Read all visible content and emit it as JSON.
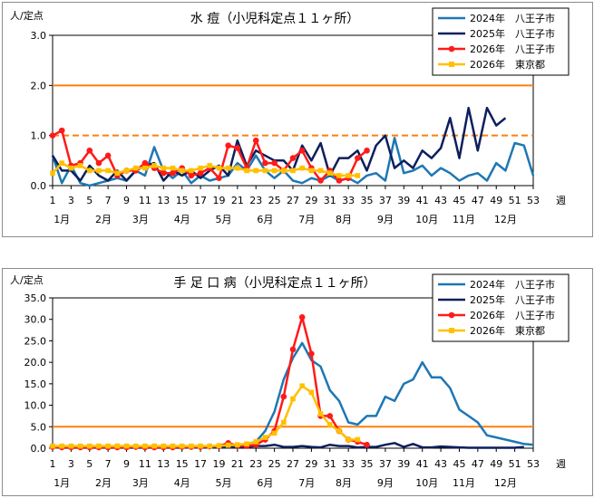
{
  "colors": {
    "s2024": "#1f77b4",
    "s2025": "#0d1f5c",
    "s2026_hachioji": "#ff1a1a",
    "s2026_tokyo": "#ffc000",
    "threshold": "#ff7f0e"
  },
  "chart_data": [
    {
      "type": "line",
      "title": "水 痘（小児科定点１１ヶ所）",
      "ylabel": "人/定点",
      "xlabel": "週",
      "ylim": [
        0,
        3.0
      ],
      "yticks": [
        "0.0",
        "1.0",
        "2.0",
        "3.0"
      ],
      "xtick_labels": [
        "1",
        "3",
        "5",
        "7",
        "9",
        "11",
        "13",
        "15",
        "17",
        "19",
        "21",
        "23",
        "25",
        "27",
        "29",
        "31",
        "33",
        "35",
        "37",
        "39",
        "41",
        "43",
        "45",
        "47",
        "49",
        "51",
        "53"
      ],
      "month_labels": [
        {
          "label": "1月",
          "week": 2
        },
        {
          "label": "2月",
          "week": 6.5
        },
        {
          "label": "3月",
          "week": 10.5
        },
        {
          "label": "4月",
          "week": 15
        },
        {
          "label": "5月",
          "week": 19.5
        },
        {
          "label": "6月",
          "week": 24
        },
        {
          "label": "7月",
          "week": 28.5
        },
        {
          "label": "8月",
          "week": 32.5
        },
        {
          "label": "9月",
          "week": 37
        },
        {
          "label": "10月",
          "week": 41.5
        },
        {
          "label": "11月",
          "week": 45.5
        },
        {
          "label": "12月",
          "week": 50
        }
      ],
      "thresholds": [
        {
          "name": "alarm",
          "value": 2.0,
          "style": "solid"
        },
        {
          "name": "warning",
          "value": 1.0,
          "style": "dashed"
        }
      ],
      "series": [
        {
          "name": "2024年　八王子市",
          "color_key": "s2024",
          "marker": "none",
          "values": [
            0.6,
            0.05,
            0.4,
            0.05,
            0.0,
            0.05,
            0.1,
            0.15,
            0.1,
            0.3,
            0.2,
            0.77,
            0.3,
            0.15,
            0.3,
            0.05,
            0.2,
            0.1,
            0.15,
            0.2,
            0.45,
            0.3,
            0.6,
            0.3,
            0.15,
            0.3,
            0.1,
            0.05,
            0.15,
            0.1,
            0.2,
            0.1,
            0.15,
            0.05,
            0.2,
            0.25,
            0.1,
            0.95,
            0.25,
            0.3,
            0.4,
            0.2,
            0.35,
            0.25,
            0.1,
            0.2,
            0.25,
            0.1,
            0.45,
            0.3,
            0.85,
            0.8,
            0.2
          ]
        },
        {
          "name": "2025年　八王子市",
          "color_key": "s2025",
          "marker": "none",
          "values": [
            0.6,
            0.3,
            0.3,
            0.1,
            0.4,
            0.2,
            0.1,
            0.3,
            0.1,
            0.3,
            0.4,
            0.45,
            0.1,
            0.3,
            0.2,
            0.3,
            0.15,
            0.3,
            0.4,
            0.2,
            0.9,
            0.4,
            0.7,
            0.6,
            0.5,
            0.5,
            0.3,
            0.8,
            0.5,
            0.85,
            0.2,
            0.55,
            0.55,
            0.7,
            0.3,
            0.8,
            1.0,
            0.35,
            0.5,
            0.35,
            0.7,
            0.55,
            0.75,
            1.35,
            0.55,
            1.55,
            0.7,
            1.55,
            1.2,
            1.35
          ]
        },
        {
          "name": "2026年　八王子市",
          "color_key": "s2026_hachioji",
          "marker": "circle",
          "values": [
            1.0,
            1.1,
            0.4,
            0.45,
            0.7,
            0.45,
            0.6,
            0.2,
            0.3,
            0.3,
            0.45,
            0.35,
            0.25,
            0.25,
            0.35,
            0.2,
            0.25,
            0.35,
            0.15,
            0.8,
            0.75,
            0.35,
            0.9,
            0.45,
            0.45,
            0.3,
            0.55,
            0.7,
            0.35,
            0.1,
            0.3,
            0.1,
            0.15,
            0.55,
            0.7
          ]
        },
        {
          "name": "2026年　東京都",
          "color_key": "s2026_tokyo",
          "marker": "square",
          "values": [
            0.25,
            0.45,
            0.35,
            0.4,
            0.3,
            0.3,
            0.3,
            0.25,
            0.3,
            0.35,
            0.35,
            0.4,
            0.35,
            0.35,
            0.3,
            0.3,
            0.35,
            0.4,
            0.35,
            0.35,
            0.35,
            0.3,
            0.3,
            0.3,
            0.3,
            0.3,
            0.3,
            0.35,
            0.3,
            0.3,
            0.25,
            0.2,
            0.2,
            0.2
          ]
        }
      ]
    },
    {
      "type": "line",
      "title": "手 足 口 病（小児科定点１１ヶ所）",
      "ylabel": "人/定点",
      "xlabel": "週",
      "ylim": [
        0,
        35.0
      ],
      "yticks": [
        "0.0",
        "5.0",
        "10.0",
        "15.0",
        "20.0",
        "25.0",
        "30.0",
        "35.0"
      ],
      "xtick_labels": [
        "1",
        "3",
        "5",
        "7",
        "9",
        "11",
        "13",
        "15",
        "17",
        "19",
        "21",
        "23",
        "25",
        "27",
        "29",
        "31",
        "33",
        "35",
        "37",
        "39",
        "41",
        "43",
        "45",
        "47",
        "49",
        "51",
        "53"
      ],
      "month_labels": [
        {
          "label": "1月",
          "week": 2
        },
        {
          "label": "2月",
          "week": 6.5
        },
        {
          "label": "3月",
          "week": 10.5
        },
        {
          "label": "4月",
          "week": 15
        },
        {
          "label": "5月",
          "week": 19.5
        },
        {
          "label": "6月",
          "week": 24
        },
        {
          "label": "7月",
          "week": 28.5
        },
        {
          "label": "8月",
          "week": 32.5
        },
        {
          "label": "9月",
          "week": 37
        },
        {
          "label": "10月",
          "week": 41.5
        },
        {
          "label": "11月",
          "week": 45.5
        },
        {
          "label": "12月",
          "week": 50
        }
      ],
      "thresholds": [
        {
          "name": "warning",
          "value": 5.0,
          "style": "solid"
        }
      ],
      "series": [
        {
          "name": "2024年　八王子市",
          "color_key": "s2024",
          "marker": "none",
          "values": [
            0.2,
            0.1,
            0.1,
            0.1,
            0.1,
            0.1,
            0.1,
            0.1,
            0.1,
            0.1,
            0.1,
            0.1,
            0.1,
            0.1,
            0.1,
            0.2,
            0.2,
            0.3,
            0.4,
            0.6,
            0.8,
            1.0,
            1.5,
            4.0,
            8.5,
            16.0,
            21.0,
            24.5,
            20.5,
            19.0,
            13.5,
            11.0,
            6.0,
            5.5,
            7.5,
            7.5,
            12.0,
            11.0,
            15.0,
            16.0,
            20.0,
            16.5,
            16.5,
            14.0,
            9.0,
            7.5,
            6.0,
            3.0,
            2.5,
            2.0,
            1.5,
            1.0,
            0.8
          ]
        },
        {
          "name": "2025年　八王子市",
          "color_key": "s2025",
          "marker": "none",
          "values": [
            0.3,
            0.2,
            0.2,
            0.2,
            0.2,
            0.2,
            0.2,
            0.2,
            0.2,
            0.2,
            0.2,
            0.2,
            0.2,
            0.2,
            0.2,
            0.2,
            0.2,
            0.2,
            0.2,
            0.2,
            0.3,
            0.3,
            0.5,
            0.5,
            0.8,
            0.3,
            0.3,
            0.5,
            0.3,
            0.2,
            0.8,
            0.5,
            0.5,
            0.2,
            0.3,
            0.3,
            0.8,
            1.2,
            0.3,
            1.0,
            0.2,
            0.2,
            0.4,
            0.3,
            0.2,
            0.1,
            0.1,
            0.1,
            0.1,
            0.1,
            0.1,
            0.3
          ]
        },
        {
          "name": "2026年　八王子市",
          "color_key": "s2026_hachioji",
          "marker": "circle",
          "values": [
            0.3,
            0.2,
            0.2,
            0.2,
            0.2,
            0.2,
            0.2,
            0.2,
            0.2,
            0.3,
            0.2,
            0.2,
            0.2,
            0.2,
            0.3,
            0.3,
            0.3,
            0.4,
            0.5,
            1.2,
            0.6,
            0.5,
            0.8,
            2.0,
            4.0,
            12.0,
            23.0,
            30.5,
            22.0,
            7.5,
            7.5,
            4.0,
            2.0,
            1.5,
            0.8
          ]
        },
        {
          "name": "2026年　東京都",
          "color_key": "s2026_tokyo",
          "marker": "square",
          "values": [
            0.5,
            0.5,
            0.5,
            0.5,
            0.5,
            0.5,
            0.5,
            0.5,
            0.5,
            0.5,
            0.5,
            0.5,
            0.5,
            0.5,
            0.5,
            0.5,
            0.5,
            0.5,
            0.6,
            0.7,
            0.8,
            1.0,
            1.5,
            2.5,
            3.5,
            6.0,
            11.5,
            14.5,
            13.0,
            8.0,
            5.5,
            4.0,
            2.0,
            2.0
          ]
        }
      ]
    }
  ]
}
